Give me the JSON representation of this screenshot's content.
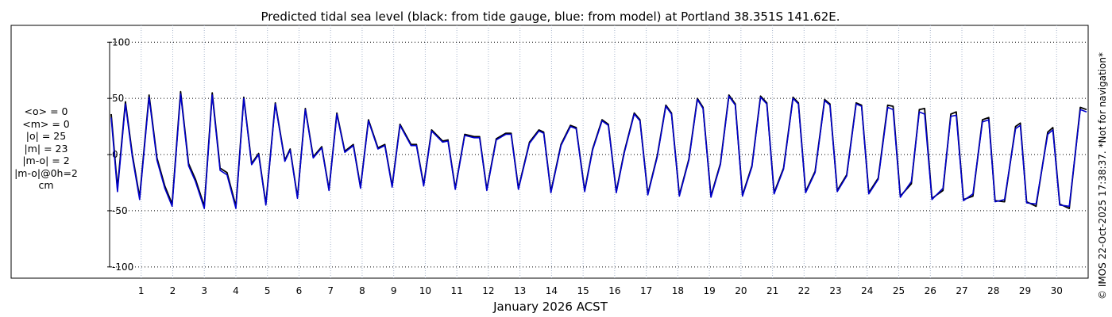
{
  "chart_data": {
    "type": "line",
    "title": "Predicted tidal sea level (black: from tide gauge, blue: from model) at Portland 38.351S 141.62E.",
    "xlabel": "January 2026 ACST",
    "ylabel": "",
    "x_unit": "day of month",
    "xlim": [
      0,
      31
    ],
    "ylim": [
      -110,
      115
    ],
    "x_ticks": [
      1,
      2,
      3,
      4,
      5,
      6,
      7,
      8,
      9,
      10,
      11,
      12,
      13,
      14,
      15,
      16,
      17,
      18,
      19,
      20,
      21,
      22,
      23,
      24,
      25,
      26,
      27,
      28,
      29,
      30
    ],
    "y_ticks": [
      100,
      50,
      0,
      -50,
      -100
    ],
    "y_tick_labels": [
      "100",
      "50",
      "0",
      "-50",
      "-100"
    ],
    "grid": {
      "x": "dotted",
      "y": "dotted"
    },
    "series": [
      {
        "name": "from tide gauge",
        "color": "#000000",
        "x": [
          0.05,
          0.25,
          0.5,
          0.72,
          0.95,
          1.25,
          1.5,
          1.75,
          1.98,
          2.25,
          2.5,
          2.72,
          3.0,
          3.25,
          3.5,
          3.72,
          4.0,
          4.25,
          4.5,
          4.72,
          4.95,
          5.25,
          5.55,
          5.72,
          5.95,
          6.2,
          6.45,
          6.72,
          6.95,
          7.2,
          7.45,
          7.72,
          7.95,
          8.2,
          8.5,
          8.72,
          8.95,
          9.2,
          9.55,
          9.72,
          9.95,
          10.2,
          10.55,
          10.72,
          10.95,
          11.25,
          11.55,
          11.72,
          11.95,
          12.25,
          12.55,
          12.72,
          12.95,
          13.3,
          13.6,
          13.75,
          13.98,
          14.3,
          14.6,
          14.78,
          15.05,
          15.3,
          15.6,
          15.8,
          16.05,
          16.3,
          16.62,
          16.8,
          17.05,
          17.35,
          17.62,
          17.8,
          18.05,
          18.35,
          18.62,
          18.8,
          19.05,
          19.35,
          19.62,
          19.82,
          20.05,
          20.35,
          20.62,
          20.82,
          21.05,
          21.35,
          21.65,
          21.82,
          22.05,
          22.35,
          22.65,
          22.82,
          23.05,
          23.35,
          23.65,
          23.82,
          24.05,
          24.35,
          24.65,
          24.82,
          25.05,
          25.4,
          25.65,
          25.82,
          26.05,
          26.4,
          26.65,
          26.82,
          27.05,
          27.35,
          27.65,
          27.85,
          28.05,
          28.35,
          28.7,
          28.85,
          29.05,
          29.35,
          29.72,
          29.88,
          30.1,
          30.4,
          30.75,
          30.95
        ],
        "values": [
          36,
          -30,
          47,
          0,
          -38,
          53,
          -3,
          -28,
          -44,
          56,
          -8,
          -22,
          -46,
          55,
          -12,
          -16,
          -46,
          51,
          -8,
          1,
          -44,
          46,
          -5,
          5,
          -38,
          41,
          -2,
          7,
          -31,
          37,
          3,
          9,
          -29,
          31,
          6,
          9,
          -28,
          27,
          9,
          9,
          -27,
          22,
          12,
          13,
          -30,
          18,
          16,
          16,
          -31,
          14,
          19,
          19,
          -30,
          11,
          22,
          20,
          -33,
          9,
          26,
          24,
          -32,
          5,
          31,
          27,
          -33,
          2,
          37,
          31,
          -35,
          -1,
          44,
          37,
          -36,
          -4,
          50,
          42,
          -37,
          -8,
          53,
          45,
          -36,
          -10,
          52,
          46,
          -34,
          -12,
          51,
          46,
          -33,
          -15,
          49,
          45,
          -32,
          -18,
          46,
          44,
          -34,
          -21,
          44,
          43,
          -37,
          -26,
          40,
          41,
          -39,
          -32,
          36,
          38,
          -40,
          -37,
          31,
          33,
          -41,
          -42,
          25,
          28,
          -42,
          -46,
          20,
          24,
          -44,
          -48,
          42,
          40
        ]
      },
      {
        "name": "from model",
        "color": "#0000cc",
        "x": [
          0.05,
          0.25,
          0.5,
          0.72,
          0.95,
          1.25,
          1.5,
          1.75,
          1.98,
          2.25,
          2.5,
          2.72,
          3.0,
          3.25,
          3.5,
          3.72,
          4.0,
          4.25,
          4.5,
          4.72,
          4.95,
          5.25,
          5.55,
          5.72,
          5.95,
          6.2,
          6.45,
          6.72,
          6.95,
          7.2,
          7.45,
          7.72,
          7.95,
          8.2,
          8.5,
          8.72,
          8.95,
          9.2,
          9.55,
          9.72,
          9.95,
          10.2,
          10.55,
          10.72,
          10.95,
          11.25,
          11.55,
          11.72,
          11.95,
          12.25,
          12.55,
          12.72,
          12.95,
          13.3,
          13.6,
          13.75,
          13.98,
          14.3,
          14.6,
          14.78,
          15.05,
          15.3,
          15.6,
          15.8,
          16.05,
          16.3,
          16.62,
          16.8,
          17.05,
          17.35,
          17.62,
          17.8,
          18.05,
          18.35,
          18.62,
          18.8,
          19.05,
          19.35,
          19.62,
          19.82,
          20.05,
          20.35,
          20.62,
          20.82,
          21.05,
          21.35,
          21.65,
          21.82,
          22.05,
          22.35,
          22.65,
          22.82,
          23.05,
          23.35,
          23.65,
          23.82,
          24.05,
          24.35,
          24.65,
          24.82,
          25.05,
          25.4,
          25.65,
          25.82,
          26.05,
          26.4,
          26.65,
          26.82,
          27.05,
          27.35,
          27.65,
          27.85,
          28.05,
          28.35,
          28.7,
          28.85,
          29.05,
          29.35,
          29.72,
          29.88,
          30.1,
          30.4,
          30.75,
          30.95
        ],
        "values": [
          33,
          -33,
          45,
          -2,
          -40,
          51,
          -5,
          -30,
          -46,
          54,
          -10,
          -24,
          -48,
          53,
          -14,
          -18,
          -48,
          50,
          -9,
          0,
          -45,
          45,
          -6,
          4,
          -39,
          40,
          -3,
          6,
          -32,
          36,
          2,
          8,
          -30,
          30,
          5,
          8,
          -29,
          26,
          8,
          8,
          -28,
          21,
          11,
          12,
          -31,
          17,
          15,
          15,
          -32,
          13,
          18,
          18,
          -31,
          10,
          21,
          19,
          -34,
          8,
          25,
          23,
          -33,
          4,
          30,
          26,
          -34,
          1,
          36,
          30,
          -36,
          -2,
          43,
          36,
          -37,
          -5,
          49,
          41,
          -38,
          -9,
          52,
          44,
          -37,
          -11,
          51,
          45,
          -35,
          -13,
          50,
          45,
          -34,
          -16,
          48,
          44,
          -33,
          -19,
          45,
          43,
          -35,
          -22,
          42,
          40,
          -38,
          -24,
          38,
          36,
          -40,
          -30,
          34,
          35,
          -41,
          -35,
          29,
          31,
          -42,
          -40,
          23,
          26,
          -43,
          -44,
          18,
          22,
          -45,
          -46,
          40,
          38
        ]
      }
    ],
    "stats_lines": [
      "<o> = 0",
      "<m> = 0",
      "|o| = 25",
      "|m| = 23",
      "|m-o| = 2",
      "|m-o|@0h=2",
      "cm"
    ],
    "side_note": "© IMOS 22-Oct-2025 17:38:37. *Not for navigation*",
    "legend": "none (colour key given in title)"
  }
}
